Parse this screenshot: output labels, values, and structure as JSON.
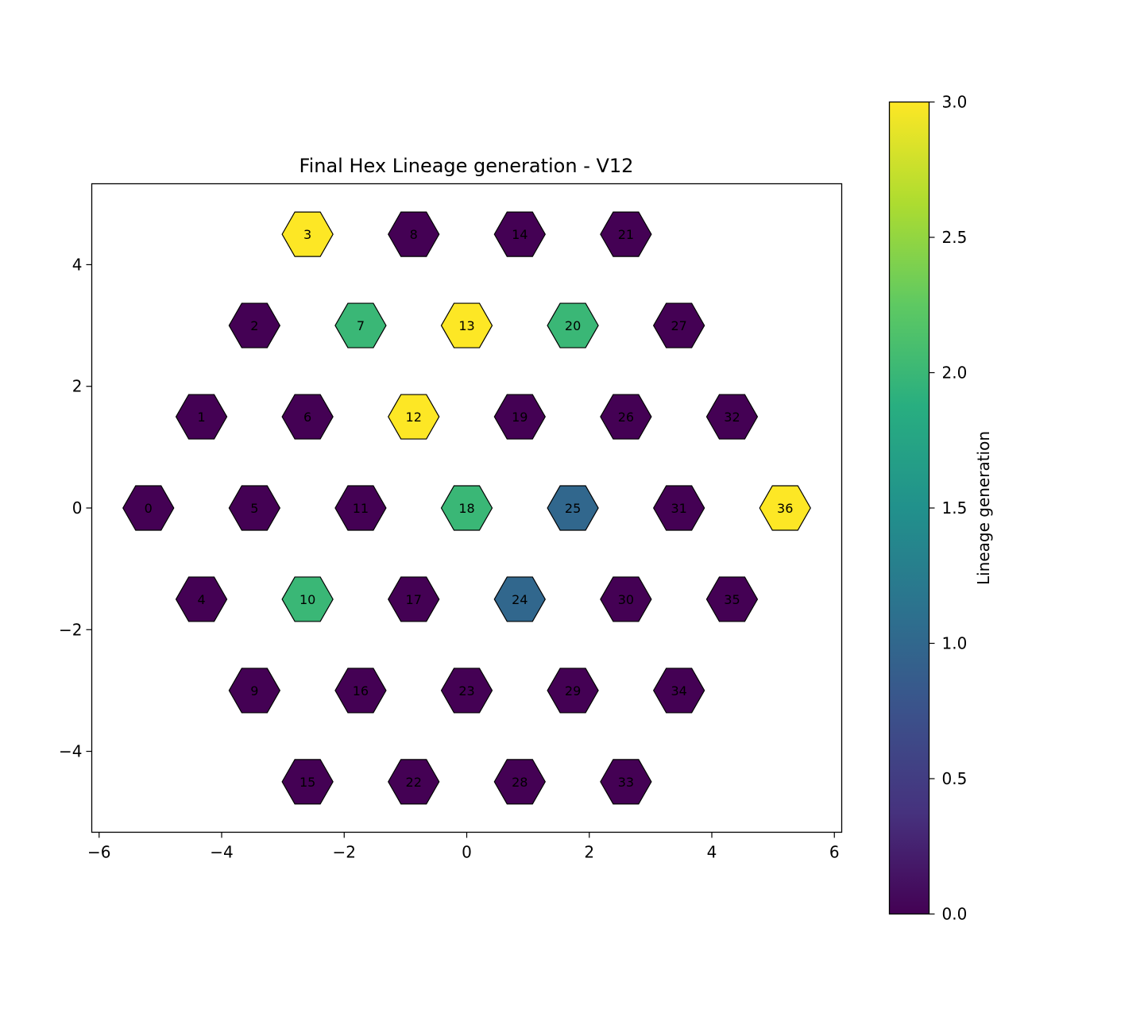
{
  "chart_data": {
    "type": "scatter",
    "title": "Final Hex Lineage generation - V12",
    "xlabel": "",
    "ylabel": "",
    "xlim": [
      -6.12,
      6.12
    ],
    "ylim": [
      -5.33,
      5.33
    ],
    "xticks": [
      -6,
      -4,
      -2,
      0,
      2,
      4,
      6
    ],
    "yticks": [
      -4,
      -2,
      0,
      2,
      4
    ],
    "xtick_labels": [
      "−6",
      "−4",
      "−2",
      "0",
      "2",
      "4",
      "6"
    ],
    "ytick_labels": [
      "−4",
      "−2",
      "0",
      "2",
      "4"
    ],
    "grid": false,
    "marker": "hexagon",
    "colormap": "viridis",
    "colorbar": {
      "label": "Lineage generation",
      "range": [
        0,
        3
      ],
      "ticks": [
        0,
        0.5,
        1,
        1.5,
        2,
        2.5,
        3
      ],
      "tick_labels": [
        "0.0",
        "0.5",
        "1.0",
        "1.5",
        "2.0",
        "2.5",
        "3.0"
      ]
    },
    "points": [
      {
        "id": "0",
        "x": -5.196,
        "y": 0.0,
        "value": 0
      },
      {
        "id": "1",
        "x": -4.33,
        "y": 1.5,
        "value": 0
      },
      {
        "id": "2",
        "x": -3.464,
        "y": 3.0,
        "value": 0
      },
      {
        "id": "3",
        "x": -2.598,
        "y": 4.5,
        "value": 3
      },
      {
        "id": "4",
        "x": -4.33,
        "y": -1.5,
        "value": 0
      },
      {
        "id": "5",
        "x": -3.464,
        "y": 0.0,
        "value": 0
      },
      {
        "id": "6",
        "x": -2.598,
        "y": 1.5,
        "value": 0
      },
      {
        "id": "7",
        "x": -1.732,
        "y": 3.0,
        "value": 2
      },
      {
        "id": "8",
        "x": -0.866,
        "y": 4.5,
        "value": 0
      },
      {
        "id": "9",
        "x": -3.464,
        "y": -3.0,
        "value": 0
      },
      {
        "id": "10",
        "x": -2.598,
        "y": -1.5,
        "value": 2
      },
      {
        "id": "11",
        "x": -1.732,
        "y": 0.0,
        "value": 0
      },
      {
        "id": "12",
        "x": -0.866,
        "y": 1.5,
        "value": 3
      },
      {
        "id": "13",
        "x": 0.0,
        "y": 3.0,
        "value": 3
      },
      {
        "id": "14",
        "x": 0.866,
        "y": 4.5,
        "value": 0
      },
      {
        "id": "15",
        "x": -2.598,
        "y": -4.5,
        "value": 0
      },
      {
        "id": "16",
        "x": -1.732,
        "y": -3.0,
        "value": 0
      },
      {
        "id": "17",
        "x": -0.866,
        "y": -1.5,
        "value": 0
      },
      {
        "id": "18",
        "x": 0.0,
        "y": 0.0,
        "value": 2
      },
      {
        "id": "19",
        "x": 0.866,
        "y": 1.5,
        "value": 0
      },
      {
        "id": "20",
        "x": 1.732,
        "y": 3.0,
        "value": 2
      },
      {
        "id": "21",
        "x": 2.598,
        "y": 4.5,
        "value": 0
      },
      {
        "id": "22",
        "x": -0.866,
        "y": -4.5,
        "value": 0
      },
      {
        "id": "23",
        "x": 0.0,
        "y": -3.0,
        "value": 0
      },
      {
        "id": "24",
        "x": 0.866,
        "y": -1.5,
        "value": 1
      },
      {
        "id": "25",
        "x": 1.732,
        "y": 0.0,
        "value": 1
      },
      {
        "id": "26",
        "x": 2.598,
        "y": 1.5,
        "value": 0
      },
      {
        "id": "27",
        "x": 3.464,
        "y": 3.0,
        "value": 0
      },
      {
        "id": "28",
        "x": 0.866,
        "y": -4.5,
        "value": 0
      },
      {
        "id": "29",
        "x": 1.732,
        "y": -3.0,
        "value": 0
      },
      {
        "id": "30",
        "x": 2.598,
        "y": -1.5,
        "value": 0
      },
      {
        "id": "31",
        "x": 3.464,
        "y": 0.0,
        "value": 0
      },
      {
        "id": "32",
        "x": 4.33,
        "y": 1.5,
        "value": 0
      },
      {
        "id": "33",
        "x": 2.598,
        "y": -4.5,
        "value": 0
      },
      {
        "id": "34",
        "x": 3.464,
        "y": -3.0,
        "value": 0
      },
      {
        "id": "35",
        "x": 4.33,
        "y": -1.5,
        "value": 0
      },
      {
        "id": "36",
        "x": 5.196,
        "y": 0.0,
        "value": 3
      }
    ]
  }
}
